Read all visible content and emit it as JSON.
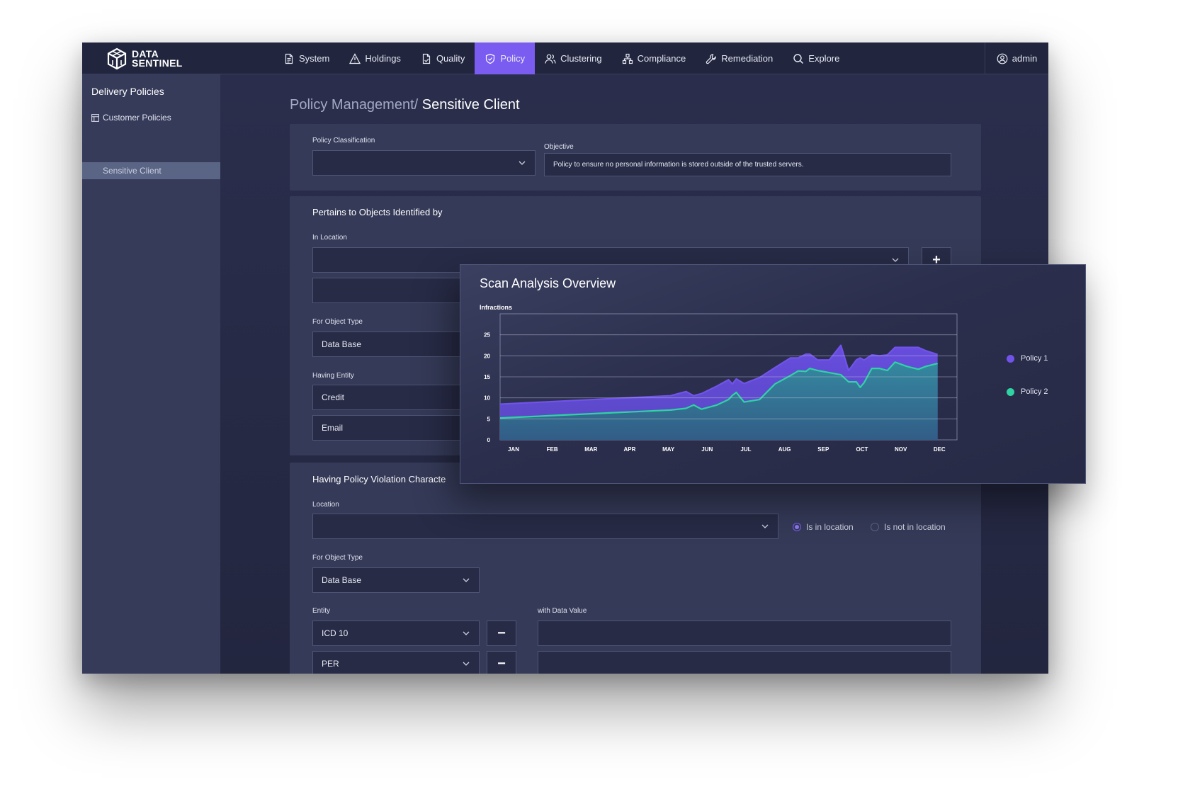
{
  "app": {
    "logo_line1": "DATA",
    "logo_line2": "SENTINEL"
  },
  "nav": {
    "items": [
      {
        "label": "System",
        "icon": "document-icon"
      },
      {
        "label": "Holdings",
        "icon": "warning-icon"
      },
      {
        "label": "Quality",
        "icon": "file-check-icon"
      },
      {
        "label": "Policy",
        "icon": "shield-icon",
        "active": true
      },
      {
        "label": "Clustering",
        "icon": "users-icon"
      },
      {
        "label": "Compliance",
        "icon": "hierarchy-icon"
      },
      {
        "label": "Remediation",
        "icon": "wrench-icon"
      },
      {
        "label": "Explore",
        "icon": "search-icon"
      }
    ],
    "user": "admin"
  },
  "sidebar": {
    "title": "Delivery Policies",
    "group": "Customer Policies",
    "selected": "Sensitive Client"
  },
  "breadcrumb": {
    "parent": "Policy Management/",
    "current": "Sensitive Client"
  },
  "general": {
    "classification_label": "Policy Classification",
    "classification_value": "",
    "objective_label": "Objective",
    "objective_value": "Policy to ensure no personal information is stored outside of the trusted servers."
  },
  "pertains": {
    "title": "Pertains to Objects Identified by",
    "in_location_label": "In Location",
    "add_label": "+",
    "object_type_label": "For Object Type",
    "object_type_value": "Data Base",
    "entity_label": "Having Entity",
    "entities": [
      "Credit",
      "Email"
    ]
  },
  "violation": {
    "title": "Having Policy Violation Characte",
    "location_label": "Location",
    "radio_in": "Is in location",
    "radio_not_in": "Is not in location",
    "object_type_label": "For Object Type",
    "object_type_value": "Data Base",
    "entity_label": "Entity",
    "data_value_label": "with Data Value",
    "remove_label": "−",
    "entities": [
      "ICD 10",
      "PER"
    ]
  },
  "chart_panel": {
    "title": "Scan Analysis Overview"
  },
  "chart_data": {
    "type": "area",
    "ylabel": "Infractions",
    "xlabel": "",
    "ylim": [
      0,
      30
    ],
    "yticks": [
      0,
      5,
      10,
      15,
      20,
      25
    ],
    "categories": [
      "JAN",
      "FEB",
      "MAR",
      "APR",
      "MAY",
      "JUN",
      "JUL",
      "AUG",
      "SEP",
      "OCT",
      "NOV",
      "DEC"
    ],
    "x": [
      0,
      4.4,
      4.8,
      5.0,
      5.2,
      5.6,
      5.9,
      6.0,
      6.1,
      6.3,
      6.7,
      7.1,
      7.5,
      7.7,
      7.9,
      8.0,
      8.2,
      8.5,
      8.8,
      9.0,
      9.2,
      9.3,
      9.4,
      9.6,
      9.8,
      10.0,
      10.2,
      10.5,
      10.8,
      11.0,
      11.3
    ],
    "series": [
      {
        "name": "Policy 1",
        "color": "#7153ea",
        "values": [
          8.5,
          10.5,
          11.5,
          10.5,
          11,
          12.8,
          14.3,
          13.3,
          14.5,
          13.4,
          14.8,
          17.2,
          19.5,
          19.5,
          20.4,
          20.4,
          19,
          19,
          22.5,
          16.5,
          19,
          19.5,
          19,
          20.2,
          20,
          20.2,
          22,
          22,
          22,
          21.2,
          20.3
        ]
      },
      {
        "name": "Policy 2",
        "color": "#2fd3a4",
        "values": [
          5.2,
          7.1,
          7.5,
          8.3,
          7.3,
          8.3,
          9.6,
          10.6,
          11.3,
          9,
          9.6,
          13.3,
          15.3,
          16.4,
          16.3,
          17,
          16.5,
          16,
          15.5,
          13.8,
          13.8,
          12.5,
          13.6,
          17,
          17,
          16.5,
          18.5,
          17.5,
          16.8,
          17.5,
          18.2
        ]
      }
    ],
    "legend_position": "right",
    "grid": true
  }
}
